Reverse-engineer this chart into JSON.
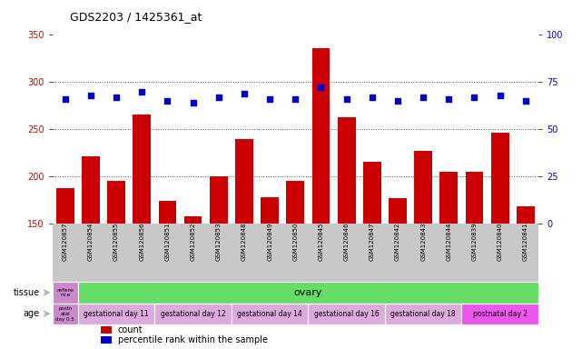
{
  "title": "GDS2203 / 1425361_at",
  "samples": [
    "GSM120857",
    "GSM120854",
    "GSM120855",
    "GSM120856",
    "GSM120851",
    "GSM120852",
    "GSM120853",
    "GSM120848",
    "GSM120849",
    "GSM120850",
    "GSM120845",
    "GSM120846",
    "GSM120847",
    "GSM120842",
    "GSM120843",
    "GSM120844",
    "GSM120839",
    "GSM120840",
    "GSM120841"
  ],
  "counts": [
    187,
    221,
    195,
    265,
    174,
    157,
    200,
    239,
    178,
    195,
    336,
    263,
    215,
    177,
    227,
    205,
    205,
    246,
    168
  ],
  "percentiles": [
    66,
    68,
    67,
    70,
    65,
    64,
    67,
    69,
    66,
    66,
    72,
    66,
    67,
    65,
    67,
    66,
    67,
    68,
    65
  ],
  "ylim_left": [
    150,
    350
  ],
  "ylim_right": [
    0,
    100
  ],
  "yticks_left": [
    150,
    200,
    250,
    300,
    350
  ],
  "yticks_right": [
    0,
    25,
    50,
    75,
    100
  ],
  "bar_color": "#cc0000",
  "dot_color": "#0000cc",
  "plot_bg": "#ffffff",
  "xtick_bg": "#c8c8c8",
  "tissue_first_color": "#cc88cc",
  "tissue_rest_color": "#66dd66",
  "age_first_color": "#cc88cc",
  "age_light_color": "#ddaadd",
  "age_dark_color": "#ee44ee",
  "tissue_first_text": "refere\nnce",
  "tissue_rest_text": "ovary",
  "age_first_text": "postn\natal\nday 0.5",
  "age_groups": [
    {
      "text": "gestational day 11",
      "color": "#ddaadd",
      "count": 3
    },
    {
      "text": "gestational day 12",
      "color": "#ddaadd",
      "count": 3
    },
    {
      "text": "gestational day 14",
      "color": "#ddaadd",
      "count": 3
    },
    {
      "text": "gestational day 16",
      "color": "#ddaadd",
      "count": 3
    },
    {
      "text": "gestational day 18",
      "color": "#ddaadd",
      "count": 3
    },
    {
      "text": "postnatal day 2",
      "color": "#ee55ee",
      "count": 3
    }
  ],
  "arrow_color": "#aaaaaa",
  "dotted_color": "#555555"
}
